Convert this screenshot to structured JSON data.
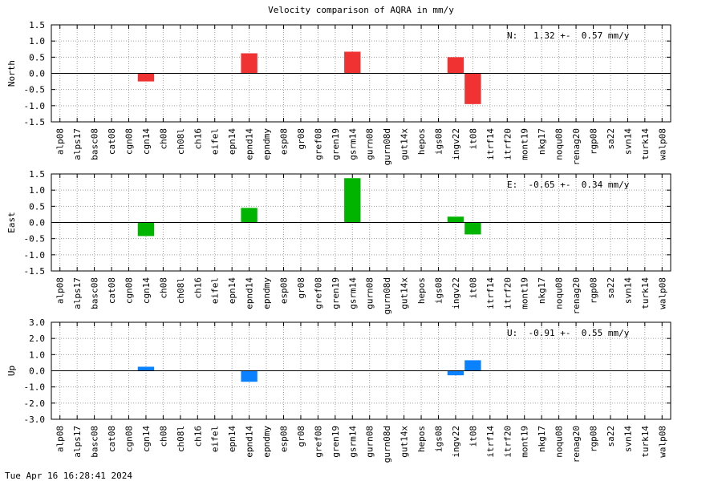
{
  "title": "Velocity comparison of AQRA in mm/y",
  "timestamp": "Tue Apr 16 16:28:41 2024",
  "chart_data": [
    {
      "type": "bar",
      "ylabel": "North",
      "annotation": "N:   1.32 +-  0.57 mm/y",
      "color": "#f03232",
      "ylim": [
        -1.5,
        1.5
      ],
      "yticks": [
        -1.5,
        -1.0,
        -0.5,
        0.0,
        0.5,
        1.0,
        1.5
      ],
      "ytick_labels": [
        "-1.5",
        "-1.0",
        "-0.5",
        "0.0",
        "0.5",
        "1.0",
        "1.5"
      ],
      "grid": true,
      "categories": [
        "alp08",
        "alps17",
        "basc08",
        "cat08",
        "cgn08",
        "cgn14",
        "ch08",
        "ch08l",
        "ch16",
        "eifel",
        "epn14",
        "epnd14",
        "epndmy",
        "esp08",
        "gr08",
        "gref08",
        "gren19",
        "gsrm14",
        "gurn08",
        "gurn08d",
        "gut14x",
        "hepos",
        "igs08",
        "ingv22",
        "it08",
        "itrf14",
        "itrf20",
        "mont19",
        "nkg17",
        "noqu08",
        "renag20",
        "rgp08",
        "sa22",
        "svn14",
        "turk14",
        "walp08"
      ],
      "values": [
        0,
        0,
        0,
        0,
        0,
        -0.25,
        0,
        0,
        0,
        0,
        0,
        0.62,
        0,
        0,
        0,
        0,
        0,
        0.67,
        0,
        0,
        0,
        0,
        0,
        0.5,
        -0.95,
        0,
        0,
        0,
        0,
        0,
        0,
        0,
        0,
        0,
        0,
        0
      ]
    },
    {
      "type": "bar",
      "ylabel": "East",
      "annotation": "E:  -0.65 +-  0.34 mm/y",
      "color": "#00b400",
      "ylim": [
        -1.5,
        1.5
      ],
      "yticks": [
        -1.5,
        -1.0,
        -0.5,
        0.0,
        0.5,
        1.0,
        1.5
      ],
      "ytick_labels": [
        "-1.5",
        "-1.0",
        "-0.5",
        "0.0",
        "0.5",
        "1.0",
        "1.5"
      ],
      "grid": true,
      "categories": [
        "alp08",
        "alps17",
        "basc08",
        "cat08",
        "cgn08",
        "cgn14",
        "ch08",
        "ch08l",
        "ch16",
        "eifel",
        "epn14",
        "epnd14",
        "epndmy",
        "esp08",
        "gr08",
        "gref08",
        "gren19",
        "gsrm14",
        "gurn08",
        "gurn08d",
        "gut14x",
        "hepos",
        "igs08",
        "ingv22",
        "it08",
        "itrf14",
        "itrf20",
        "mont19",
        "nkg17",
        "noqu08",
        "renag20",
        "rgp08",
        "sa22",
        "svn14",
        "turk14",
        "walp08"
      ],
      "values": [
        0,
        0,
        0,
        0,
        0,
        -0.42,
        0,
        0,
        0,
        0,
        0,
        0.45,
        0,
        0,
        0,
        0,
        0,
        1.37,
        0,
        0,
        0,
        0,
        0,
        0.18,
        -0.37,
        0,
        0,
        0,
        0,
        0,
        0,
        0,
        0,
        0,
        0,
        0
      ]
    },
    {
      "type": "bar",
      "ylabel": "Up",
      "annotation": "U:  -0.91 +-  0.55 mm/y",
      "color": "#0a82ff",
      "ylim": [
        -3.0,
        3.0
      ],
      "yticks": [
        -3.0,
        -2.0,
        -1.0,
        0.0,
        1.0,
        2.0,
        3.0
      ],
      "ytick_labels": [
        "-3.0",
        "-2.0",
        "-1.0",
        "0.0",
        "1.0",
        "2.0",
        "3.0"
      ],
      "grid": true,
      "categories": [
        "alp08",
        "alps17",
        "basc08",
        "cat08",
        "cgn08",
        "cgn14",
        "ch08",
        "ch08l",
        "ch16",
        "eifel",
        "epn14",
        "epnd14",
        "epndmy",
        "esp08",
        "gr08",
        "gref08",
        "gren19",
        "gsrm14",
        "gurn08",
        "gurn08d",
        "gut14x",
        "hepos",
        "igs08",
        "ingv22",
        "it08",
        "itrf14",
        "itrf20",
        "mont19",
        "nkg17",
        "noqu08",
        "renag20",
        "rgp08",
        "sa22",
        "svn14",
        "turk14",
        "walp08"
      ],
      "values": [
        0,
        0,
        0,
        0,
        0,
        0.25,
        0,
        0,
        0,
        0,
        0,
        -0.68,
        0,
        0,
        0,
        0,
        0,
        0,
        0,
        0,
        0,
        0,
        0,
        -0.28,
        0.65,
        0,
        0,
        0,
        0,
        0,
        0,
        0,
        0,
        0,
        0,
        0
      ]
    }
  ]
}
